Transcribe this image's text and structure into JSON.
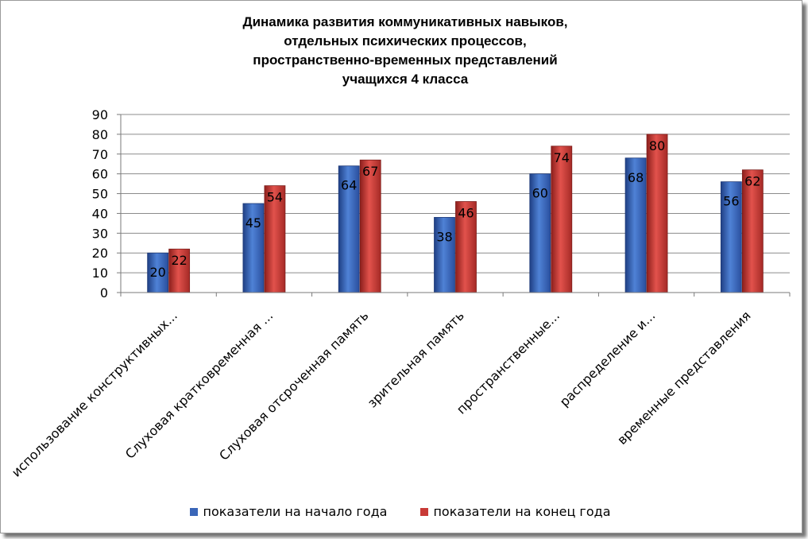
{
  "chart_data": {
    "type": "bar",
    "title_lines": [
      "Динамика развития коммуникативных навыков,",
      "отдельных психических процессов,",
      "пространственно-временных представлений",
      "учащихся  4  класса"
    ],
    "categories": [
      "использование конструктивных...",
      "Слуховая кратковременная ...",
      "Слуховая отсроченная память",
      "зрительная память",
      "пространственные...",
      "распределение и...",
      "временные представления"
    ],
    "series": [
      {
        "name": "показатели на начало года",
        "values": [
          20,
          45,
          64,
          38,
          60,
          68,
          56
        ],
        "color": "#3a66b8"
      },
      {
        "name": "показатели на конец года",
        "values": [
          22,
          54,
          67,
          46,
          74,
          80,
          62
        ],
        "color": "#c83a36"
      }
    ],
    "ylim": [
      0,
      90
    ],
    "yticks": [
      0,
      10,
      20,
      30,
      40,
      50,
      60,
      70,
      80,
      90
    ],
    "grid": true,
    "legend_position": "bottom"
  }
}
